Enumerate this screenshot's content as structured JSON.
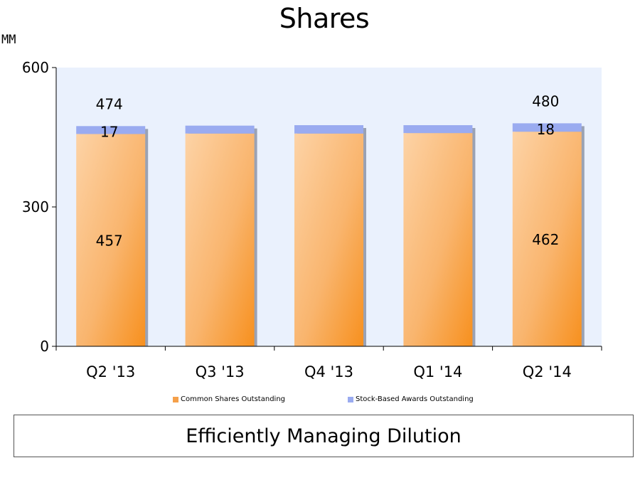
{
  "title": "Shares",
  "unit_label": "MM",
  "callout": "Efficiently Managing Dilution",
  "legend": [
    {
      "label": "Common Shares Outstanding",
      "color": "#f5a04a"
    },
    {
      "label": "Stock-Based Awards Outstanding",
      "color": "#9aabf0"
    }
  ],
  "chart_data": {
    "type": "bar",
    "stacked": true,
    "categories": [
      "Q2 '13",
      "Q3 '13",
      "Q4 '13",
      "Q1 '14",
      "Q2 '14"
    ],
    "series": [
      {
        "name": "Common Shares Outstanding",
        "values": [
          457,
          458,
          458,
          459,
          462
        ]
      },
      {
        "name": "Stock-Based Awards Outstanding",
        "values": [
          17,
          17,
          18,
          17,
          18
        ]
      }
    ],
    "value_labels": [
      {
        "category": "Q2 '13",
        "common": "457",
        "awards": "17",
        "total": "474"
      },
      {
        "category": "Q3 '13",
        "common": "",
        "awards": "",
        "total": ""
      },
      {
        "category": "Q4 '13",
        "common": "",
        "awards": "",
        "total": ""
      },
      {
        "category": "Q1 '14",
        "common": "",
        "awards": "",
        "total": ""
      },
      {
        "category": "Q2 '14",
        "common": "462",
        "awards": "18",
        "total": "480"
      }
    ],
    "yticks": [
      "0",
      "300",
      "600"
    ],
    "ylim": [
      0,
      600
    ],
    "plot_background": "#eaf1fd",
    "grid": false,
    "legend_position": "bottom"
  }
}
